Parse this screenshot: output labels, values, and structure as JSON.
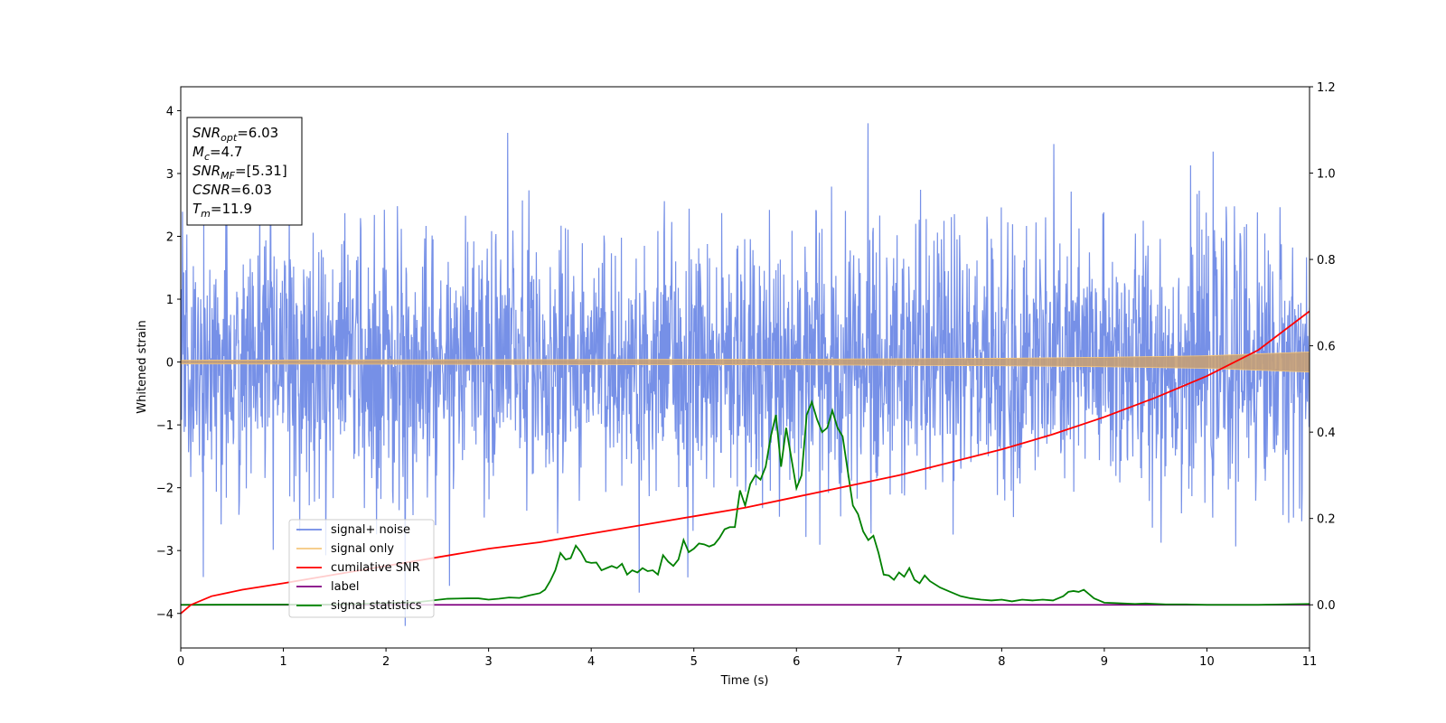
{
  "chart_data": {
    "type": "line",
    "xlabel": "Time (s)",
    "ylabel": "Whitened strain",
    "xlim": [
      0,
      11
    ],
    "ylim_left": [
      -4.55,
      4.38
    ],
    "ylim_right": [
      -0.1,
      1.2
    ],
    "x_ticks": [
      0,
      1,
      2,
      3,
      4,
      5,
      6,
      7,
      8,
      9,
      10,
      11
    ],
    "y_ticks_left": [
      -4,
      -3,
      -2,
      -1,
      0,
      1,
      2,
      3,
      4
    ],
    "y_tick_labels_left": [
      "−4",
      "−3",
      "−2",
      "−1",
      "0",
      "1",
      "2",
      "3",
      "4"
    ],
    "y_ticks_right": [
      0.0,
      0.2,
      0.4,
      0.6,
      0.8,
      1.0,
      1.2
    ],
    "y_tick_labels_right": [
      "0.0",
      "0.2",
      "0.4",
      "0.6",
      "0.8",
      "1.0",
      "1.2"
    ],
    "grid": false,
    "legend_position": "lower-left",
    "info_box": [
      {
        "sym": "SNR",
        "sub": "opt",
        "val": "=6.03"
      },
      {
        "sym": "M",
        "sub": "c",
        "val": "=4.7"
      },
      {
        "sym": "SNR",
        "sub": "MF",
        "val": "=[5.31]"
      },
      {
        "sym": "CSNR",
        "sub": "",
        "val": "=6.03"
      },
      {
        "sym": "T",
        "sub": "m",
        "val": "=11.9"
      }
    ],
    "series": [
      {
        "name": "signal+ noise",
        "color": "#6f8ae6",
        "axis": "left",
        "description_values": {
          "mean": 0,
          "std": 1.0,
          "min": -4.2,
          "max": 3.8
        }
      },
      {
        "name": "signal only",
        "color": "#f5c77e",
        "axis": "left",
        "envelope": {
          "x": [
            0,
            2,
            4,
            6,
            8,
            9,
            10,
            11
          ],
          "amplitude": [
            0.03,
            0.035,
            0.04,
            0.045,
            0.06,
            0.075,
            0.1,
            0.16
          ]
        }
      },
      {
        "name": "cumilative SNR",
        "color": "#ff0000",
        "axis": "right",
        "x": [
          0,
          0.1,
          0.3,
          0.6,
          1,
          1.5,
          2,
          2.5,
          3,
          3.5,
          4,
          4.5,
          5,
          5.5,
          6,
          6.5,
          7,
          7.5,
          8,
          8.5,
          9,
          9.5,
          10,
          10.5,
          11
        ],
        "y": [
          -0.02,
          0.0,
          0.02,
          0.035,
          0.05,
          0.07,
          0.09,
          0.11,
          0.13,
          0.145,
          0.165,
          0.185,
          0.205,
          0.225,
          0.25,
          0.275,
          0.3,
          0.33,
          0.36,
          0.395,
          0.435,
          0.48,
          0.53,
          0.59,
          0.68
        ]
      },
      {
        "name": "label",
        "color": "#800080",
        "axis": "right",
        "x": [
          0,
          11
        ],
        "y": [
          0.0,
          0.0
        ]
      },
      {
        "name": "signal statistics",
        "color": "#008000",
        "axis": "right",
        "x": [
          0,
          1.6,
          2.3,
          2.6,
          2.8,
          2.9,
          3.0,
          3.1,
          3.2,
          3.3,
          3.4,
          3.5,
          3.55,
          3.6,
          3.65,
          3.7,
          3.75,
          3.8,
          3.85,
          3.9,
          3.95,
          4.0,
          4.05,
          4.1,
          4.15,
          4.2,
          4.25,
          4.3,
          4.35,
          4.4,
          4.45,
          4.5,
          4.55,
          4.6,
          4.65,
          4.7,
          4.75,
          4.8,
          4.85,
          4.9,
          4.95,
          5.0,
          5.05,
          5.1,
          5.15,
          5.2,
          5.25,
          5.3,
          5.35,
          5.4,
          5.45,
          5.5,
          5.55,
          5.6,
          5.65,
          5.7,
          5.75,
          5.8,
          5.85,
          5.9,
          5.95,
          6.0,
          6.05,
          6.1,
          6.15,
          6.2,
          6.25,
          6.3,
          6.35,
          6.4,
          6.45,
          6.5,
          6.55,
          6.6,
          6.65,
          6.7,
          6.75,
          6.8,
          6.85,
          6.9,
          6.95,
          7.0,
          7.05,
          7.1,
          7.15,
          7.2,
          7.25,
          7.3,
          7.4,
          7.5,
          7.6,
          7.7,
          7.8,
          7.9,
          8.0,
          8.1,
          8.2,
          8.3,
          8.4,
          8.5,
          8.55,
          8.6,
          8.65,
          8.7,
          8.75,
          8.8,
          8.85,
          8.9,
          8.95,
          9.0,
          9.1,
          9.2,
          9.3,
          9.4,
          9.5,
          9.6,
          9.8,
          10.0,
          10.5,
          11
        ],
        "y": [
          0.0,
          0.001,
          0.006,
          0.014,
          0.015,
          0.015,
          0.012,
          0.014,
          0.017,
          0.016,
          0.022,
          0.027,
          0.035,
          0.055,
          0.08,
          0.12,
          0.105,
          0.108,
          0.137,
          0.122,
          0.1,
          0.097,
          0.098,
          0.08,
          0.085,
          0.09,
          0.085,
          0.095,
          0.07,
          0.08,
          0.075,
          0.085,
          0.078,
          0.08,
          0.07,
          0.115,
          0.1,
          0.09,
          0.105,
          0.15,
          0.122,
          0.13,
          0.142,
          0.14,
          0.135,
          0.14,
          0.155,
          0.175,
          0.18,
          0.18,
          0.265,
          0.23,
          0.28,
          0.3,
          0.29,
          0.32,
          0.39,
          0.44,
          0.32,
          0.41,
          0.34,
          0.27,
          0.3,
          0.44,
          0.47,
          0.43,
          0.4,
          0.41,
          0.45,
          0.41,
          0.39,
          0.31,
          0.23,
          0.21,
          0.17,
          0.15,
          0.16,
          0.12,
          0.07,
          0.068,
          0.058,
          0.075,
          0.065,
          0.085,
          0.058,
          0.05,
          0.068,
          0.055,
          0.04,
          0.03,
          0.02,
          0.015,
          0.012,
          0.01,
          0.012,
          0.008,
          0.012,
          0.01,
          0.012,
          0.01,
          0.015,
          0.02,
          0.03,
          0.032,
          0.03,
          0.035,
          0.025,
          0.015,
          0.01,
          0.005,
          0.004,
          0.003,
          0.002,
          0.003,
          0.002,
          0.001,
          0.001,
          0.0,
          0.0,
          0.002
        ]
      }
    ]
  }
}
